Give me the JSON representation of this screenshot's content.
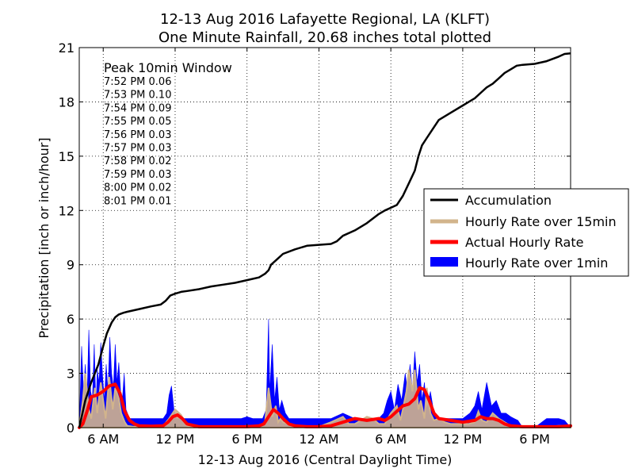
{
  "chart_data": {
    "type": "line",
    "title_line1": "12-13 Aug 2016 Lafayette Regional, LA (KLFT)",
    "title_line2": "One Minute Rainfall, 20.68 inches total plotted",
    "xlabel": "12-13 Aug 2016 (Central Daylight Time)",
    "ylabel": "Precipitation [inch or inch/hour]",
    "x_unit": "hours since 12 Aug 2016 00:00 CDT",
    "xlim": [
      4,
      45
    ],
    "ylim": [
      0,
      21
    ],
    "yticks": [
      0,
      3,
      6,
      9,
      12,
      15,
      18,
      21
    ],
    "xticks": [
      {
        "x": 6,
        "label": "6 AM"
      },
      {
        "x": 12,
        "label": "12 PM"
      },
      {
        "x": 18,
        "label": "6 PM"
      },
      {
        "x": 24,
        "label": "12 AM"
      },
      {
        "x": 30,
        "label": "6 AM"
      },
      {
        "x": 36,
        "label": "12 PM"
      },
      {
        "x": 42,
        "label": "6 PM"
      }
    ],
    "grid": true,
    "legend_position": "right",
    "colors": {
      "accumulation": "#000000",
      "rate15": "#d2b48c",
      "actual": "#ff0000",
      "rate1": "#0000ff"
    },
    "peak_window": {
      "title": "Peak 10min Window",
      "entries": [
        "7:52 PM 0.06",
        "7:53 PM 0.10",
        "7:54 PM 0.09",
        "7:55 PM 0.05",
        "7:56 PM 0.03",
        "7:57 PM 0.03",
        "7:58 PM 0.02",
        "7:59 PM 0.03",
        "8:00 PM 0.02",
        "8:01 PM 0.01"
      ]
    },
    "series": [
      {
        "name": "Accumulation",
        "x": [
          4.0,
          4.5,
          5.0,
          5.3,
          5.6,
          6.0,
          6.3,
          6.7,
          7.0,
          7.3,
          7.5,
          7.7,
          8.0,
          9.0,
          10.0,
          10.8,
          11.2,
          11.6,
          12.0,
          12.5,
          13.0,
          14.0,
          15.0,
          16.0,
          17.0,
          18.0,
          19.0,
          19.5,
          19.8,
          20.0,
          20.5,
          21.0,
          22.0,
          23.0,
          24.0,
          25.0,
          25.5,
          26.0,
          27.0,
          28.0,
          29.0,
          29.5,
          30.0,
          30.5,
          31.0,
          31.5,
          32.0,
          32.3,
          32.6,
          33.0,
          33.5,
          34.0,
          35.0,
          36.0,
          36.5,
          37.0,
          37.5,
          38.0,
          38.5,
          39.0,
          39.5,
          40.0,
          40.5,
          41.0,
          42.0,
          43.0,
          44.0,
          44.5,
          45.0
        ],
        "y": [
          0.0,
          1.5,
          2.5,
          3.0,
          3.5,
          4.5,
          5.2,
          5.8,
          6.1,
          6.25,
          6.3,
          6.35,
          6.4,
          6.55,
          6.7,
          6.8,
          7.0,
          7.3,
          7.4,
          7.5,
          7.55,
          7.65,
          7.8,
          7.9,
          8.0,
          8.15,
          8.3,
          8.5,
          8.7,
          9.0,
          9.3,
          9.6,
          9.85,
          10.05,
          10.1,
          10.15,
          10.3,
          10.6,
          10.9,
          11.3,
          11.8,
          12.0,
          12.15,
          12.3,
          12.8,
          13.5,
          14.2,
          15.0,
          15.6,
          16.0,
          16.5,
          17.0,
          17.4,
          17.8,
          18.0,
          18.2,
          18.5,
          18.8,
          19.0,
          19.3,
          19.6,
          19.8,
          20.0,
          20.05,
          20.1,
          20.25,
          20.5,
          20.65,
          20.68
        ]
      },
      {
        "name": "Hourly Rate over 15min",
        "x": [
          4.0,
          4.3,
          4.5,
          4.8,
          5.0,
          5.3,
          5.5,
          5.8,
          6.0,
          6.2,
          6.5,
          6.8,
          7.0,
          7.3,
          7.5,
          7.8,
          8.0,
          8.5,
          9.0,
          10.0,
          11.0,
          11.5,
          12.0,
          12.5,
          13.0,
          14.0,
          15.0,
          16.0,
          17.0,
          18.0,
          18.5,
          19.0,
          19.5,
          19.8,
          20.1,
          20.4,
          20.6,
          20.8,
          21.0,
          21.5,
          22.0,
          23.0,
          24.0,
          25.0,
          26.0,
          26.5,
          27.0,
          28.0,
          28.5,
          29.0,
          29.5,
          30.0,
          30.5,
          30.8,
          31.0,
          31.3,
          31.5,
          31.8,
          32.0,
          32.3,
          32.5,
          32.8,
          33.0,
          33.3,
          33.6,
          34.0,
          34.5,
          35.0,
          36.0,
          36.5,
          37.0,
          37.3,
          37.6,
          38.0,
          38.5,
          39.0,
          39.5,
          40.0,
          41.0,
          42.0,
          43.0,
          44.0,
          45.0
        ],
        "y": [
          0.0,
          1.5,
          3.0,
          1.0,
          0.5,
          2.2,
          0.8,
          2.5,
          1.5,
          0.5,
          2.8,
          1.0,
          2.2,
          1.6,
          0.8,
          0.3,
          0.1,
          0.05,
          0.05,
          0.1,
          0.1,
          0.5,
          1.0,
          0.7,
          0.1,
          0.05,
          0.05,
          0.05,
          0.05,
          0.1,
          0.1,
          0.1,
          0.3,
          2.2,
          0.6,
          1.2,
          0.3,
          0.5,
          0.3,
          0.2,
          0.05,
          0.05,
          0.05,
          0.3,
          0.6,
          0.2,
          0.2,
          0.6,
          0.5,
          0.2,
          0.2,
          0.8,
          1.2,
          0.4,
          1.0,
          2.0,
          3.2,
          2.0,
          3.2,
          1.0,
          1.5,
          0.5,
          2.2,
          0.8,
          0.4,
          0.5,
          0.3,
          0.2,
          0.2,
          0.2,
          0.3,
          0.9,
          0.4,
          0.3,
          0.8,
          0.5,
          0.3,
          0.1,
          0.05,
          0.05,
          0.05,
          0.1,
          0.1
        ]
      },
      {
        "name": "Actual Hourly Rate",
        "x": [
          4.0,
          4.3,
          4.7,
          5.0,
          5.5,
          6.0,
          6.5,
          7.0,
          7.4,
          7.8,
          8.2,
          8.6,
          9.0,
          10.0,
          11.0,
          11.4,
          11.8,
          12.2,
          12.6,
          13.0,
          14.0,
          15.0,
          16.0,
          17.0,
          18.0,
          19.0,
          19.4,
          19.8,
          20.2,
          20.6,
          21.0,
          21.5,
          22.0,
          23.0,
          24.0,
          25.0,
          26.0,
          27.0,
          28.0,
          29.0,
          29.5,
          30.0,
          30.5,
          31.0,
          31.5,
          32.0,
          32.4,
          32.8,
          33.2,
          33.6,
          34.0,
          35.0,
          36.0,
          37.0,
          37.5,
          38.0,
          38.5,
          39.0,
          39.5,
          40.0,
          41.0,
          42.0,
          43.0,
          44.0,
          45.0
        ],
        "y": [
          0.0,
          0.2,
          1.0,
          1.7,
          1.8,
          2.0,
          2.3,
          2.4,
          1.9,
          0.9,
          0.4,
          0.2,
          0.1,
          0.08,
          0.1,
          0.3,
          0.6,
          0.7,
          0.5,
          0.2,
          0.05,
          0.05,
          0.05,
          0.05,
          0.05,
          0.1,
          0.2,
          0.6,
          1.0,
          0.8,
          0.5,
          0.2,
          0.1,
          0.05,
          0.05,
          0.1,
          0.3,
          0.5,
          0.4,
          0.5,
          0.4,
          0.6,
          0.9,
          1.2,
          1.3,
          1.6,
          2.2,
          2.1,
          1.5,
          0.8,
          0.5,
          0.4,
          0.3,
          0.4,
          0.6,
          0.5,
          0.5,
          0.4,
          0.2,
          0.1,
          0.05,
          0.05,
          0.05,
          0.05,
          0.1
        ]
      },
      {
        "name": "Hourly Rate over 1min",
        "x": [
          4.0,
          4.2,
          4.35,
          4.5,
          4.65,
          4.8,
          4.95,
          5.1,
          5.25,
          5.4,
          5.5,
          5.65,
          5.8,
          5.95,
          6.1,
          6.25,
          6.4,
          6.55,
          6.7,
          6.85,
          7.0,
          7.15,
          7.3,
          7.45,
          7.6,
          7.75,
          7.9,
          8.2,
          8.5,
          9.0,
          9.5,
          10.0,
          10.5,
          11.0,
          11.3,
          11.5,
          11.7,
          11.9,
          12.1,
          12.4,
          12.7,
          13.0,
          13.5,
          14.0,
          15.0,
          16.0,
          17.0,
          17.5,
          18.0,
          18.5,
          19.0,
          19.3,
          19.6,
          19.8,
          19.9,
          20.1,
          20.3,
          20.5,
          20.7,
          20.9,
          21.2,
          21.5,
          22.0,
          23.0,
          24.0,
          25.0,
          26.0,
          27.0,
          28.0,
          29.0,
          29.4,
          29.7,
          30.0,
          30.3,
          30.6,
          30.9,
          31.2,
          31.4,
          31.6,
          31.8,
          32.0,
          32.2,
          32.4,
          32.6,
          32.8,
          33.0,
          33.3,
          33.6,
          34.0,
          34.5,
          35.0,
          36.0,
          36.6,
          37.0,
          37.3,
          37.6,
          38.0,
          38.4,
          38.8,
          39.2,
          39.6,
          40.0,
          40.3,
          40.6,
          41.0,
          42.0,
          43.0,
          43.5,
          44.0,
          44.5,
          45.0
        ],
        "y": [
          0.0,
          4.5,
          2.0,
          3.5,
          1.5,
          5.4,
          2.0,
          1.5,
          4.6,
          1.0,
          3.2,
          2.5,
          4.7,
          2.8,
          1.5,
          3.5,
          2.0,
          5.0,
          3.0,
          2.2,
          4.6,
          2.5,
          3.6,
          2.0,
          1.5,
          3.0,
          1.0,
          0.5,
          0.5,
          0.5,
          0.5,
          0.5,
          0.5,
          0.5,
          0.8,
          1.8,
          2.3,
          1.0,
          0.5,
          0.5,
          0.5,
          0.5,
          0.5,
          0.5,
          0.5,
          0.5,
          0.5,
          0.5,
          0.6,
          0.5,
          0.5,
          0.5,
          1.0,
          6.0,
          2.0,
          4.6,
          1.5,
          2.8,
          1.0,
          1.5,
          0.8,
          0.5,
          0.5,
          0.5,
          0.5,
          0.5,
          0.8,
          0.5,
          0.5,
          0.5,
          0.8,
          1.5,
          2.0,
          1.0,
          2.4,
          1.5,
          3.0,
          2.0,
          3.5,
          2.0,
          4.2,
          2.5,
          3.5,
          1.5,
          2.5,
          1.0,
          2.0,
          0.8,
          0.5,
          0.5,
          0.5,
          0.5,
          0.8,
          1.2,
          2.0,
          1.0,
          2.5,
          1.2,
          1.5,
          0.8,
          0.8,
          0.6,
          0.5,
          0.4,
          0.0,
          0.0,
          0.5,
          0.5,
          0.5,
          0.4,
          0.0
        ]
      }
    ]
  }
}
